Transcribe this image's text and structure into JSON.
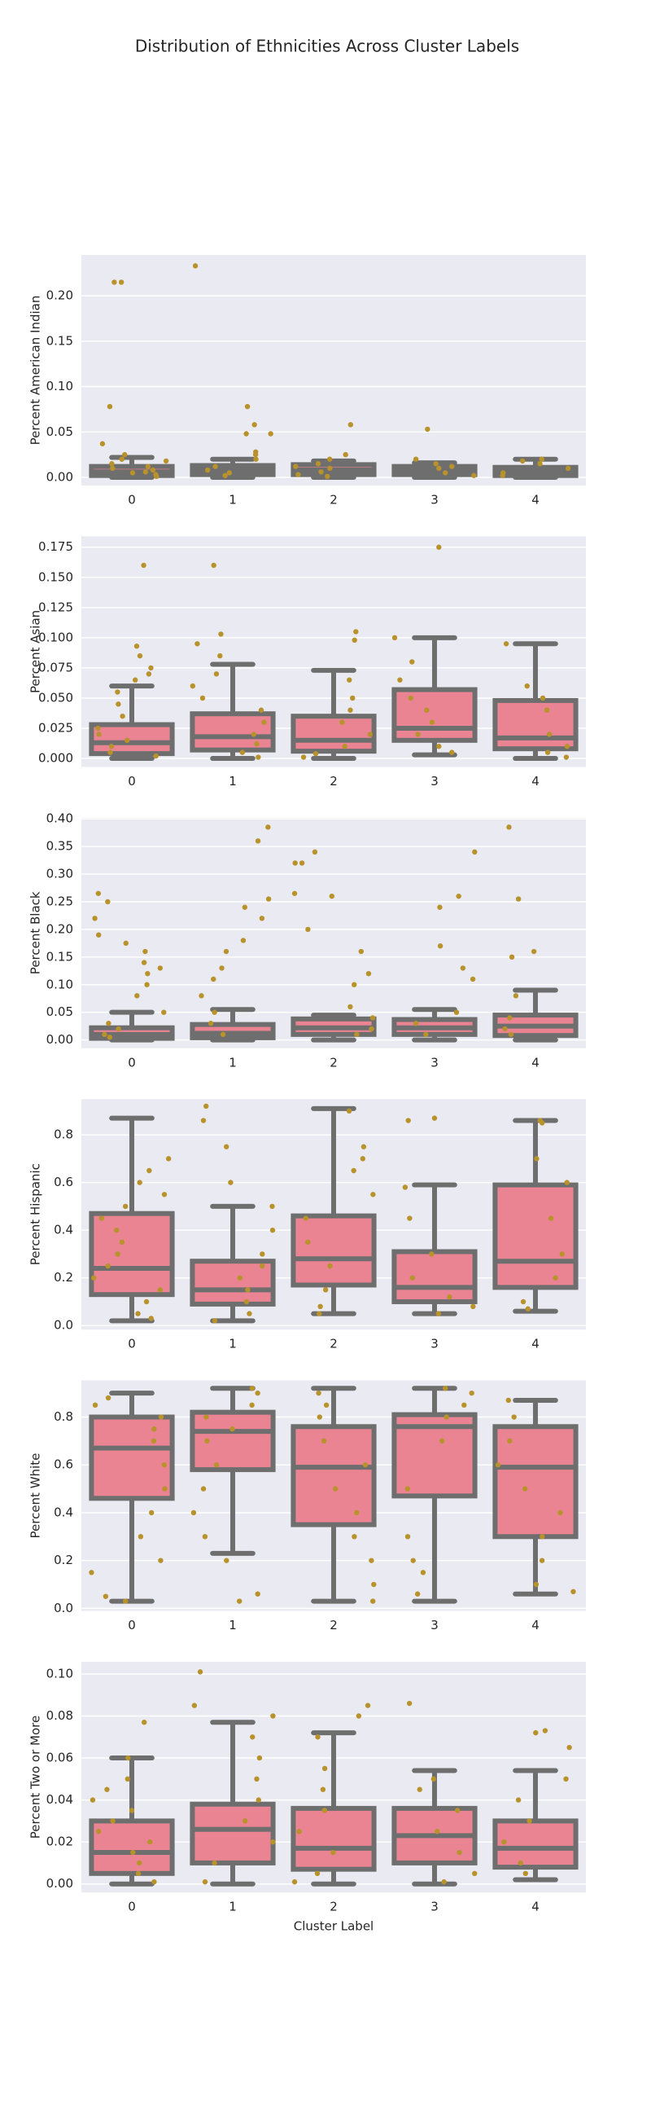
{
  "title": "Distribution of Ethnicities Across Cluster Labels",
  "chart_data": [
    {
      "type": "box",
      "ylabel": "Percent American Indian",
      "categories": [
        "0",
        "1",
        "2",
        "3",
        "4"
      ],
      "ylim": [
        -0.009,
        0.245
      ],
      "yticks": [
        {
          "value": 0,
          "label": "0.00"
        },
        {
          "value": 0.05,
          "label": "0.05"
        },
        {
          "value": 0.1,
          "label": "0.10"
        },
        {
          "value": 0.15,
          "label": "0.15"
        },
        {
          "value": 0.2,
          "label": "0.20"
        }
      ],
      "grid": true,
      "box_color": "#ea8493",
      "edge_color": "#6e6e6e",
      "point_color": "#b8922a",
      "boxes": [
        {
          "whislo": 0,
          "q1": 0.002,
          "med": 0.006,
          "q3": 0.012,
          "whishi": 0.022
        },
        {
          "whislo": 0,
          "q1": 0.003,
          "med": 0.008,
          "q3": 0.013,
          "whishi": 0.02
        },
        {
          "whislo": 0,
          "q1": 0.003,
          "med": 0.008,
          "q3": 0.014,
          "whishi": 0.018
        },
        {
          "whislo": 0,
          "q1": 0.003,
          "med": 0.007,
          "q3": 0.012,
          "whishi": 0.016
        },
        {
          "whislo": 0,
          "q1": 0.002,
          "med": 0.006,
          "q3": 0.011,
          "whishi": 0.02
        }
      ],
      "points": [
        [
          0.215,
          0.215,
          0.078,
          0.037,
          0.025,
          0.02,
          0.015,
          0.01,
          0.008,
          0.005,
          0.003,
          0.001,
          0.012,
          0.018,
          0.006
        ],
        [
          0.233,
          0.078,
          0.048,
          0.048,
          0.058,
          0.028,
          0.025,
          0.02,
          0.012,
          0.008,
          0.005,
          0.002
        ],
        [
          0.058,
          0.025,
          0.02,
          0.015,
          0.01,
          0.006,
          0.003,
          0.001,
          0.012
        ],
        [
          0.053,
          0.02,
          0.015,
          0.01,
          0.005,
          0.002,
          0.012
        ],
        [
          0.02,
          0.015,
          0.01,
          0.005,
          0.002,
          0.018
        ]
      ]
    },
    {
      "type": "box",
      "ylabel": "Percent Asian",
      "categories": [
        "0",
        "1",
        "2",
        "3",
        "4"
      ],
      "ylim": [
        -0.007,
        0.184
      ],
      "yticks": [
        {
          "value": 0,
          "label": "0.000"
        },
        {
          "value": 0.025,
          "label": "0.025"
        },
        {
          "value": 0.05,
          "label": "0.050"
        },
        {
          "value": 0.075,
          "label": "0.075"
        },
        {
          "value": 0.1,
          "label": "0.100"
        },
        {
          "value": 0.125,
          "label": "0.125"
        },
        {
          "value": 0.15,
          "label": "0.150"
        },
        {
          "value": 0.175,
          "label": "0.175"
        }
      ],
      "grid": true,
      "box_color": "#ea8493",
      "edge_color": "#6e6e6e",
      "point_color": "#b8922a",
      "boxes": [
        {
          "whislo": 0,
          "q1": 0.004,
          "med": 0.013,
          "q3": 0.028,
          "whishi": 0.06
        },
        {
          "whislo": 0,
          "q1": 0.007,
          "med": 0.018,
          "q3": 0.037,
          "whishi": 0.078
        },
        {
          "whislo": 0,
          "q1": 0.006,
          "med": 0.015,
          "q3": 0.035,
          "whishi": 0.073
        },
        {
          "whislo": 0.003,
          "q1": 0.015,
          "med": 0.025,
          "q3": 0.057,
          "whishi": 0.1
        },
        {
          "whislo": 0,
          "q1": 0.008,
          "med": 0.017,
          "q3": 0.048,
          "whishi": 0.095
        }
      ],
      "points": [
        [
          0.16,
          0.093,
          0.085,
          0.075,
          0.07,
          0.065,
          0.055,
          0.045,
          0.035,
          0.025,
          0.02,
          0.015,
          0.01,
          0.005,
          0.002
        ],
        [
          0.16,
          0.103,
          0.095,
          0.085,
          0.07,
          0.06,
          0.05,
          0.04,
          0.03,
          0.02,
          0.012,
          0.005,
          0.001
        ],
        [
          0.105,
          0.098,
          0.065,
          0.05,
          0.04,
          0.03,
          0.02,
          0.01,
          0.004,
          0.001
        ],
        [
          0.175,
          0.1,
          0.08,
          0.065,
          0.05,
          0.04,
          0.03,
          0.02,
          0.01,
          0.005
        ],
        [
          0.095,
          0.06,
          0.05,
          0.04,
          0.02,
          0.01,
          0.005,
          0.001
        ]
      ]
    },
    {
      "type": "box",
      "ylabel": "Percent Black",
      "categories": [
        "0",
        "1",
        "2",
        "3",
        "4"
      ],
      "ylim": [
        -0.015,
        0.402
      ],
      "yticks": [
        {
          "value": 0,
          "label": "0.00"
        },
        {
          "value": 0.05,
          "label": "0.05"
        },
        {
          "value": 0.1,
          "label": "0.10"
        },
        {
          "value": 0.15,
          "label": "0.15"
        },
        {
          "value": 0.2,
          "label": "0.20"
        },
        {
          "value": 0.25,
          "label": "0.25"
        },
        {
          "value": 0.3,
          "label": "0.30"
        },
        {
          "value": 0.35,
          "label": "0.35"
        },
        {
          "value": 0.4,
          "label": "0.40"
        }
      ],
      "grid": true,
      "box_color": "#ea8493",
      "edge_color": "#6e6e6e",
      "point_color": "#b8922a",
      "boxes": [
        {
          "whislo": 0,
          "q1": 0.003,
          "med": 0.01,
          "q3": 0.022,
          "whishi": 0.05
        },
        {
          "whislo": 0,
          "q1": 0.004,
          "med": 0.012,
          "q3": 0.028,
          "whishi": 0.055
        },
        {
          "whislo": 0,
          "q1": 0.01,
          "med": 0.022,
          "q3": 0.038,
          "whishi": 0.045
        },
        {
          "whislo": 0,
          "q1": 0.01,
          "med": 0.022,
          "q3": 0.037,
          "whishi": 0.055
        },
        {
          "whislo": 0,
          "q1": 0.008,
          "med": 0.025,
          "q3": 0.045,
          "whishi": 0.09
        }
      ],
      "points": [
        [
          0.265,
          0.25,
          0.22,
          0.19,
          0.175,
          0.16,
          0.14,
          0.13,
          0.12,
          0.1,
          0.08,
          0.05,
          0.03,
          0.02,
          0.01,
          0.005
        ],
        [
          0.385,
          0.36,
          0.255,
          0.24,
          0.22,
          0.18,
          0.16,
          0.13,
          0.11,
          0.08,
          0.05,
          0.03,
          0.01
        ],
        [
          0.32,
          0.32,
          0.34,
          0.265,
          0.26,
          0.2,
          0.16,
          0.12,
          0.1,
          0.06,
          0.04,
          0.02,
          0.01
        ],
        [
          0.34,
          0.26,
          0.24,
          0.17,
          0.13,
          0.11,
          0.05,
          0.03,
          0.01
        ],
        [
          0.385,
          0.255,
          0.16,
          0.15,
          0.08,
          0.04,
          0.02,
          0.01
        ]
      ]
    },
    {
      "type": "box",
      "ylabel": "Percent Hispanic",
      "categories": [
        "0",
        "1",
        "2",
        "3",
        "4"
      ],
      "ylim": [
        -0.017,
        0.95
      ],
      "yticks": [
        {
          "value": 0,
          "label": "0.0"
        },
        {
          "value": 0.2,
          "label": "0.2"
        },
        {
          "value": 0.4,
          "label": "0.4"
        },
        {
          "value": 0.6,
          "label": "0.6"
        },
        {
          "value": 0.8,
          "label": "0.8"
        }
      ],
      "grid": true,
      "box_color": "#ea8493",
      "edge_color": "#6e6e6e",
      "point_color": "#b8922a",
      "boxes": [
        {
          "whislo": 0.02,
          "q1": 0.13,
          "med": 0.24,
          "q3": 0.47,
          "whishi": 0.87
        },
        {
          "whislo": 0.02,
          "q1": 0.09,
          "med": 0.15,
          "q3": 0.27,
          "whishi": 0.5
        },
        {
          "whislo": 0.05,
          "q1": 0.17,
          "med": 0.28,
          "q3": 0.46,
          "whishi": 0.91
        },
        {
          "whislo": 0.05,
          "q1": 0.1,
          "med": 0.16,
          "q3": 0.31,
          "whishi": 0.59
        },
        {
          "whislo": 0.06,
          "q1": 0.16,
          "med": 0.27,
          "q3": 0.59,
          "whishi": 0.86
        }
      ],
      "points": [
        [
          0.7,
          0.65,
          0.6,
          0.55,
          0.5,
          0.45,
          0.4,
          0.35,
          0.3,
          0.25,
          0.2,
          0.15,
          0.1,
          0.05,
          0.03
        ],
        [
          0.92,
          0.86,
          0.75,
          0.6,
          0.5,
          0.4,
          0.3,
          0.25,
          0.2,
          0.15,
          0.1,
          0.05,
          0.02
        ],
        [
          0.9,
          0.75,
          0.7,
          0.65,
          0.55,
          0.45,
          0.35,
          0.25,
          0.15,
          0.08,
          0.05
        ],
        [
          0.87,
          0.86,
          0.58,
          0.45,
          0.3,
          0.2,
          0.12,
          0.08,
          0.05
        ],
        [
          0.86,
          0.85,
          0.7,
          0.6,
          0.45,
          0.3,
          0.2,
          0.1,
          0.07
        ]
      ]
    },
    {
      "type": "box",
      "ylabel": "Percent White",
      "categories": [
        "0",
        "1",
        "2",
        "3",
        "4"
      ],
      "ylim": [
        -0.011,
        0.953
      ],
      "yticks": [
        {
          "value": 0,
          "label": "0.0"
        },
        {
          "value": 0.2,
          "label": "0.2"
        },
        {
          "value": 0.4,
          "label": "0.4"
        },
        {
          "value": 0.6,
          "label": "0.6"
        },
        {
          "value": 0.8,
          "label": "0.8"
        }
      ],
      "grid": true,
      "box_color": "#ea8493",
      "edge_color": "#6e6e6e",
      "point_color": "#b8922a",
      "boxes": [
        {
          "whislo": 0.03,
          "q1": 0.46,
          "med": 0.67,
          "q3": 0.8,
          "whishi": 0.9
        },
        {
          "whislo": 0.23,
          "q1": 0.58,
          "med": 0.74,
          "q3": 0.82,
          "whishi": 0.92
        },
        {
          "whislo": 0.03,
          "q1": 0.35,
          "med": 0.59,
          "q3": 0.76,
          "whishi": 0.92
        },
        {
          "whislo": 0.03,
          "q1": 0.47,
          "med": 0.76,
          "q3": 0.81,
          "whishi": 0.92
        },
        {
          "whislo": 0.06,
          "q1": 0.3,
          "med": 0.59,
          "q3": 0.76,
          "whishi": 0.87
        }
      ],
      "points": [
        [
          0.88,
          0.85,
          0.8,
          0.75,
          0.7,
          0.6,
          0.5,
          0.4,
          0.3,
          0.2,
          0.15,
          0.05,
          0.03
        ],
        [
          0.92,
          0.9,
          0.85,
          0.8,
          0.75,
          0.7,
          0.6,
          0.5,
          0.4,
          0.3,
          0.2,
          0.06,
          0.03
        ],
        [
          0.9,
          0.85,
          0.8,
          0.7,
          0.6,
          0.5,
          0.4,
          0.3,
          0.2,
          0.1,
          0.03
        ],
        [
          0.92,
          0.9,
          0.85,
          0.8,
          0.7,
          0.5,
          0.3,
          0.2,
          0.15,
          0.06
        ],
        [
          0.87,
          0.8,
          0.7,
          0.6,
          0.5,
          0.4,
          0.3,
          0.2,
          0.1,
          0.07
        ]
      ]
    },
    {
      "type": "box",
      "ylabel": "Percent Two or More",
      "xlabel": "Cluster Label",
      "categories": [
        "0",
        "1",
        "2",
        "3",
        "4"
      ],
      "ylim": [
        -0.004,
        0.1058
      ],
      "yticks": [
        {
          "value": 0,
          "label": "0.00"
        },
        {
          "value": 0.02,
          "label": "0.02"
        },
        {
          "value": 0.04,
          "label": "0.04"
        },
        {
          "value": 0.06,
          "label": "0.06"
        },
        {
          "value": 0.08,
          "label": "0.08"
        },
        {
          "value": 0.1,
          "label": "0.10"
        }
      ],
      "grid": true,
      "box_color": "#ea8493",
      "edge_color": "#6e6e6e",
      "point_color": "#b8922a",
      "boxes": [
        {
          "whislo": 0,
          "q1": 0.005,
          "med": 0.015,
          "q3": 0.03,
          "whishi": 0.06
        },
        {
          "whislo": 0,
          "q1": 0.01,
          "med": 0.026,
          "q3": 0.038,
          "whishi": 0.077
        },
        {
          "whislo": 0,
          "q1": 0.007,
          "med": 0.017,
          "q3": 0.036,
          "whishi": 0.072
        },
        {
          "whislo": 0,
          "q1": 0.01,
          "med": 0.023,
          "q3": 0.036,
          "whishi": 0.054
        },
        {
          "whislo": 0.002,
          "q1": 0.008,
          "med": 0.017,
          "q3": 0.03,
          "whishi": 0.054
        }
      ],
      "points": [
        [
          0.077,
          0.06,
          0.05,
          0.045,
          0.04,
          0.035,
          0.03,
          0.025,
          0.02,
          0.015,
          0.01,
          0.005,
          0.001
        ],
        [
          0.101,
          0.085,
          0.08,
          0.07,
          0.06,
          0.05,
          0.04,
          0.03,
          0.02,
          0.01,
          0.001
        ],
        [
          0.085,
          0.08,
          0.07,
          0.055,
          0.045,
          0.035,
          0.025,
          0.015,
          0.005,
          0.001
        ],
        [
          0.086,
          0.05,
          0.045,
          0.035,
          0.025,
          0.015,
          0.005,
          0.001
        ],
        [
          0.073,
          0.072,
          0.065,
          0.05,
          0.04,
          0.03,
          0.02,
          0.01,
          0.005
        ]
      ]
    }
  ]
}
